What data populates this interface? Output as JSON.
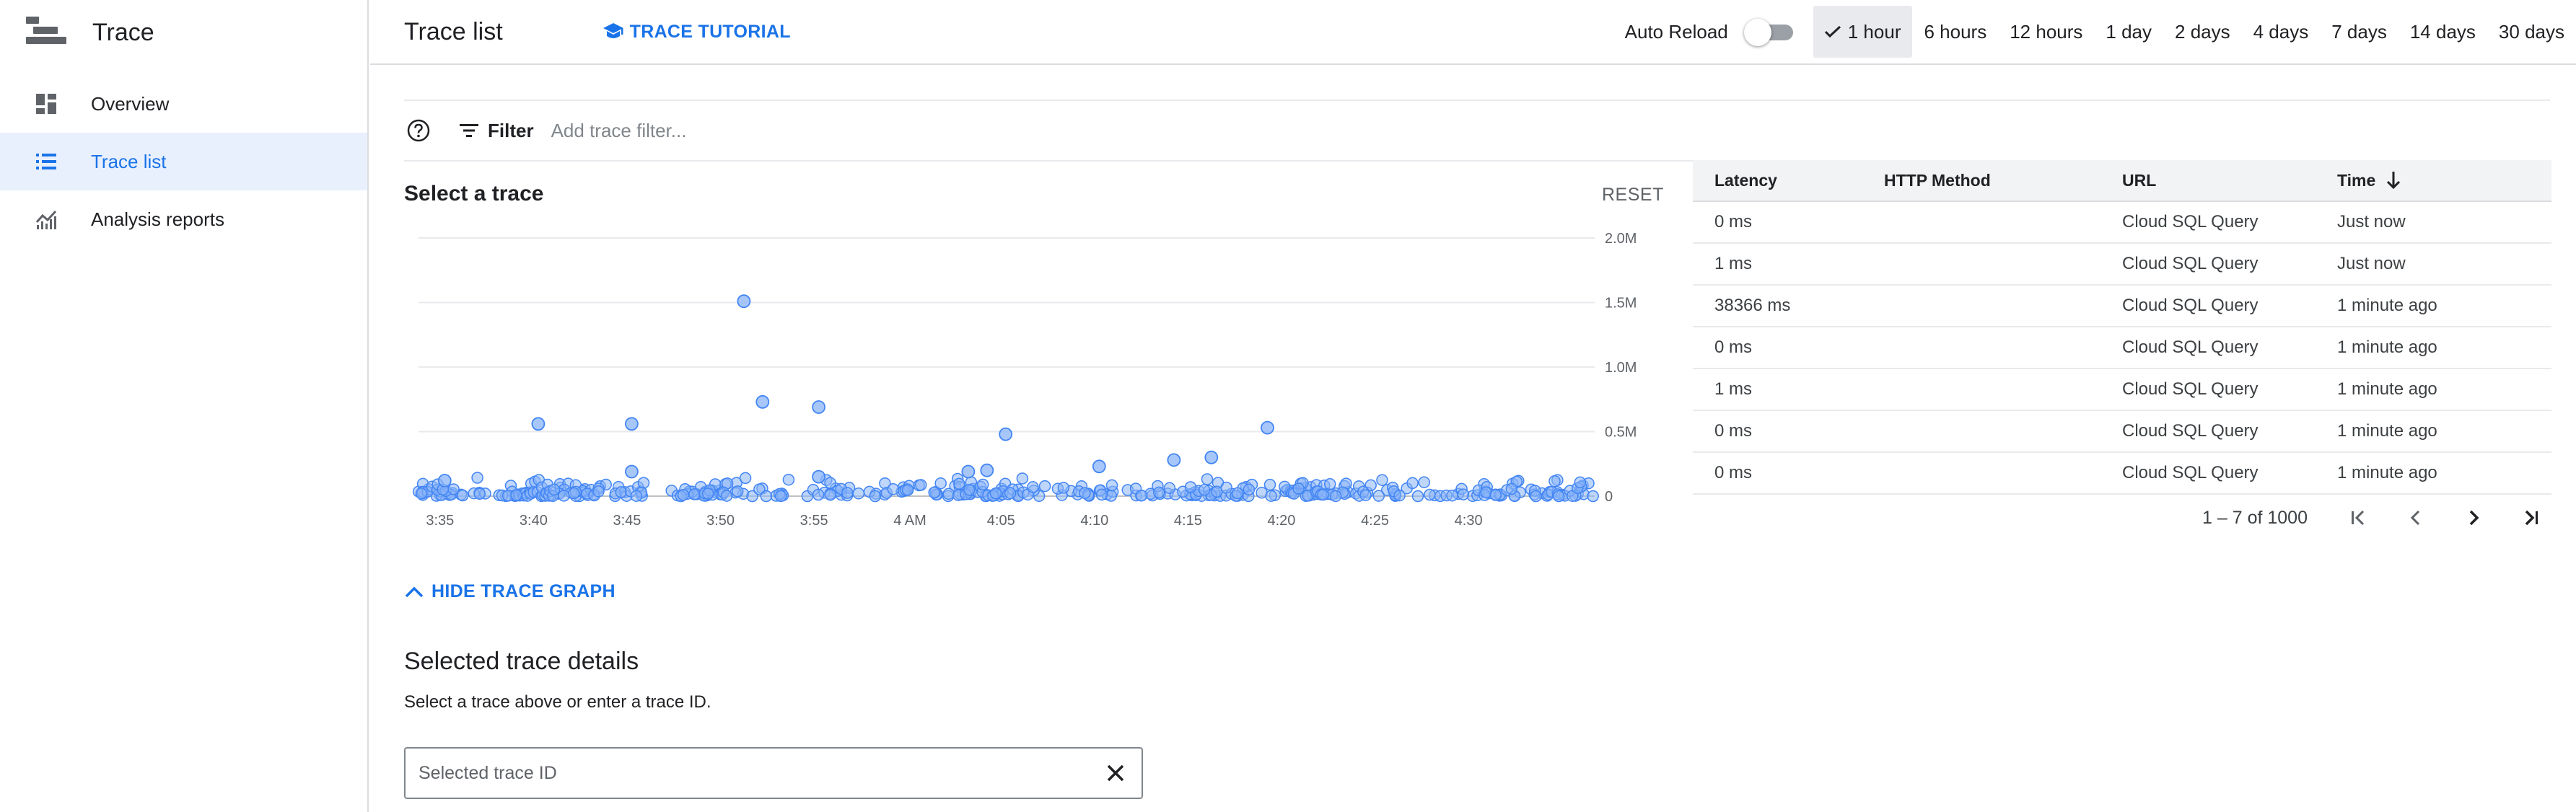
{
  "app": {
    "title": "Trace"
  },
  "sidebar": {
    "items": [
      {
        "label": "Overview",
        "icon": "dashboard-icon",
        "active": false
      },
      {
        "label": "Trace list",
        "icon": "list-icon",
        "active": true
      },
      {
        "label": "Analysis reports",
        "icon": "analytics-icon",
        "active": false
      }
    ]
  },
  "header": {
    "page_title": "Trace list",
    "tutorial_label": "TRACE TUTORIAL",
    "auto_reload_label": "Auto Reload",
    "auto_reload_on": false,
    "ranges": [
      "1 hour",
      "6 hours",
      "12 hours",
      "1 day",
      "2 days",
      "4 days",
      "7 days",
      "14 days",
      "30 days"
    ],
    "selected_range": "1 hour"
  },
  "filter": {
    "label": "Filter",
    "placeholder": "Add trace filter..."
  },
  "chart_section": {
    "title": "Select a trace",
    "reset_label": "RESET",
    "hide_label": "HIDE TRACE GRAPH"
  },
  "chart_data": {
    "type": "scatter",
    "title": "",
    "xlabel": "",
    "ylabel": "",
    "x_ticks": [
      "3:35",
      "3:40",
      "3:45",
      "3:50",
      "3:55",
      "4 AM",
      "4:05",
      "4:10",
      "4:15",
      "4:20",
      "4:25",
      "4:30"
    ],
    "y_ticks": [
      "0",
      "0.5M",
      "1.0M",
      "1.5M",
      "2.0M"
    ],
    "ylim": [
      0,
      2000000
    ],
    "y_axis_side": "right",
    "grid": true,
    "color": "#4285f4",
    "notable_points": [
      {
        "x": "3:52",
        "y": 1510000
      },
      {
        "x": "3:41",
        "y": 560000
      },
      {
        "x": "3:46",
        "y": 560000
      },
      {
        "x": "3:53",
        "y": 730000
      },
      {
        "x": "3:56",
        "y": 690000
      },
      {
        "x": "4:06",
        "y": 480000
      },
      {
        "x": "4:20",
        "y": 530000
      },
      {
        "x": "4:17",
        "y": 300000
      },
      {
        "x": "4:15",
        "y": 280000
      },
      {
        "x": "4:11",
        "y": 230000
      },
      {
        "x": "4:05",
        "y": 200000
      },
      {
        "x": "4:04",
        "y": 190000
      },
      {
        "x": "3:46",
        "y": 190000
      },
      {
        "x": "3:56",
        "y": 150000
      },
      {
        "x": "3:36",
        "y": 120000
      }
    ],
    "baseline_note": "dense cluster near 0"
  },
  "table": {
    "columns": [
      "Latency",
      "HTTP Method",
      "URL",
      "Time"
    ],
    "sort_column": "Time",
    "rows": [
      {
        "latency": "0 ms",
        "method": "",
        "url": "Cloud SQL Query",
        "time": "Just now"
      },
      {
        "latency": "1 ms",
        "method": "",
        "url": "Cloud SQL Query",
        "time": "Just now"
      },
      {
        "latency": "38366 ms",
        "method": "",
        "url": "Cloud SQL Query",
        "time": "1 minute ago"
      },
      {
        "latency": "0 ms",
        "method": "",
        "url": "Cloud SQL Query",
        "time": "1 minute ago"
      },
      {
        "latency": "1 ms",
        "method": "",
        "url": "Cloud SQL Query",
        "time": "1 minute ago"
      },
      {
        "latency": "0 ms",
        "method": "",
        "url": "Cloud SQL Query",
        "time": "1 minute ago"
      },
      {
        "latency": "0 ms",
        "method": "",
        "url": "Cloud SQL Query",
        "time": "1 minute ago"
      }
    ],
    "pagination": "1 – 7 of 1000"
  },
  "details": {
    "title": "Selected trace details",
    "subtitle": "Select a trace above or enter a trace ID.",
    "input_placeholder": "Selected trace ID"
  }
}
